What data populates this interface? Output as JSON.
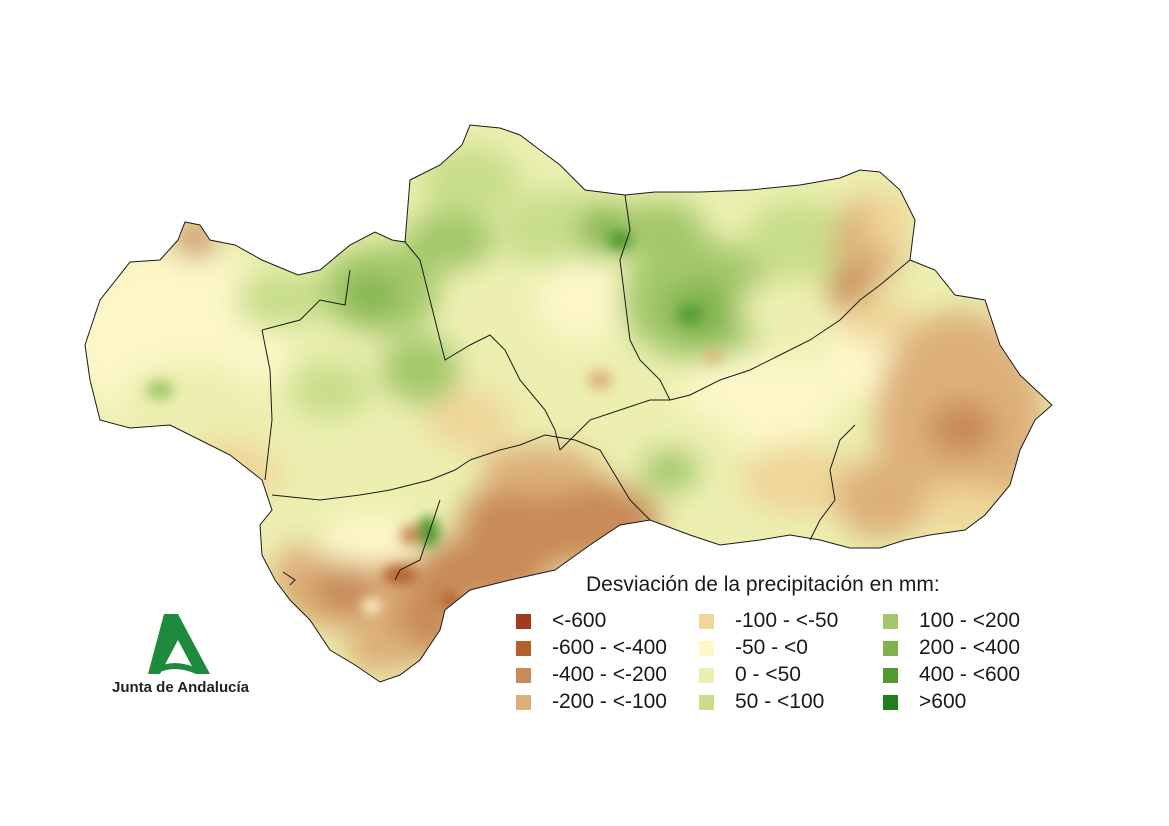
{
  "legend": {
    "title": "Desviación de la precipitación en mm:",
    "items": [
      {
        "label": "<-600",
        "color": "#a33a1c"
      },
      {
        "label": "-600 - <-400",
        "color": "#b4602d"
      },
      {
        "label": "-400 - <-200",
        "color": "#c88a58"
      },
      {
        "label": "-200 - <-100",
        "color": "#ddb07a"
      },
      {
        "label": "-100 - <-50",
        "color": "#efd69a"
      },
      {
        "label": "-50 - <0",
        "color": "#fdf7c9"
      },
      {
        "label": "0 - <50",
        "color": "#ecefb0"
      },
      {
        "label": "50 - <100",
        "color": "#c8de8a"
      },
      {
        "label": "100 - <200",
        "color": "#a3c86a"
      },
      {
        "label": "200 - <400",
        "color": "#7fb24c"
      },
      {
        "label": "400 - <600",
        "color": "#4f9a31"
      },
      {
        "label": ">600",
        "color": "#1f7f1f"
      }
    ]
  },
  "logo": {
    "text": "Junta de Andalucía",
    "color": "#1d8a3e"
  }
}
